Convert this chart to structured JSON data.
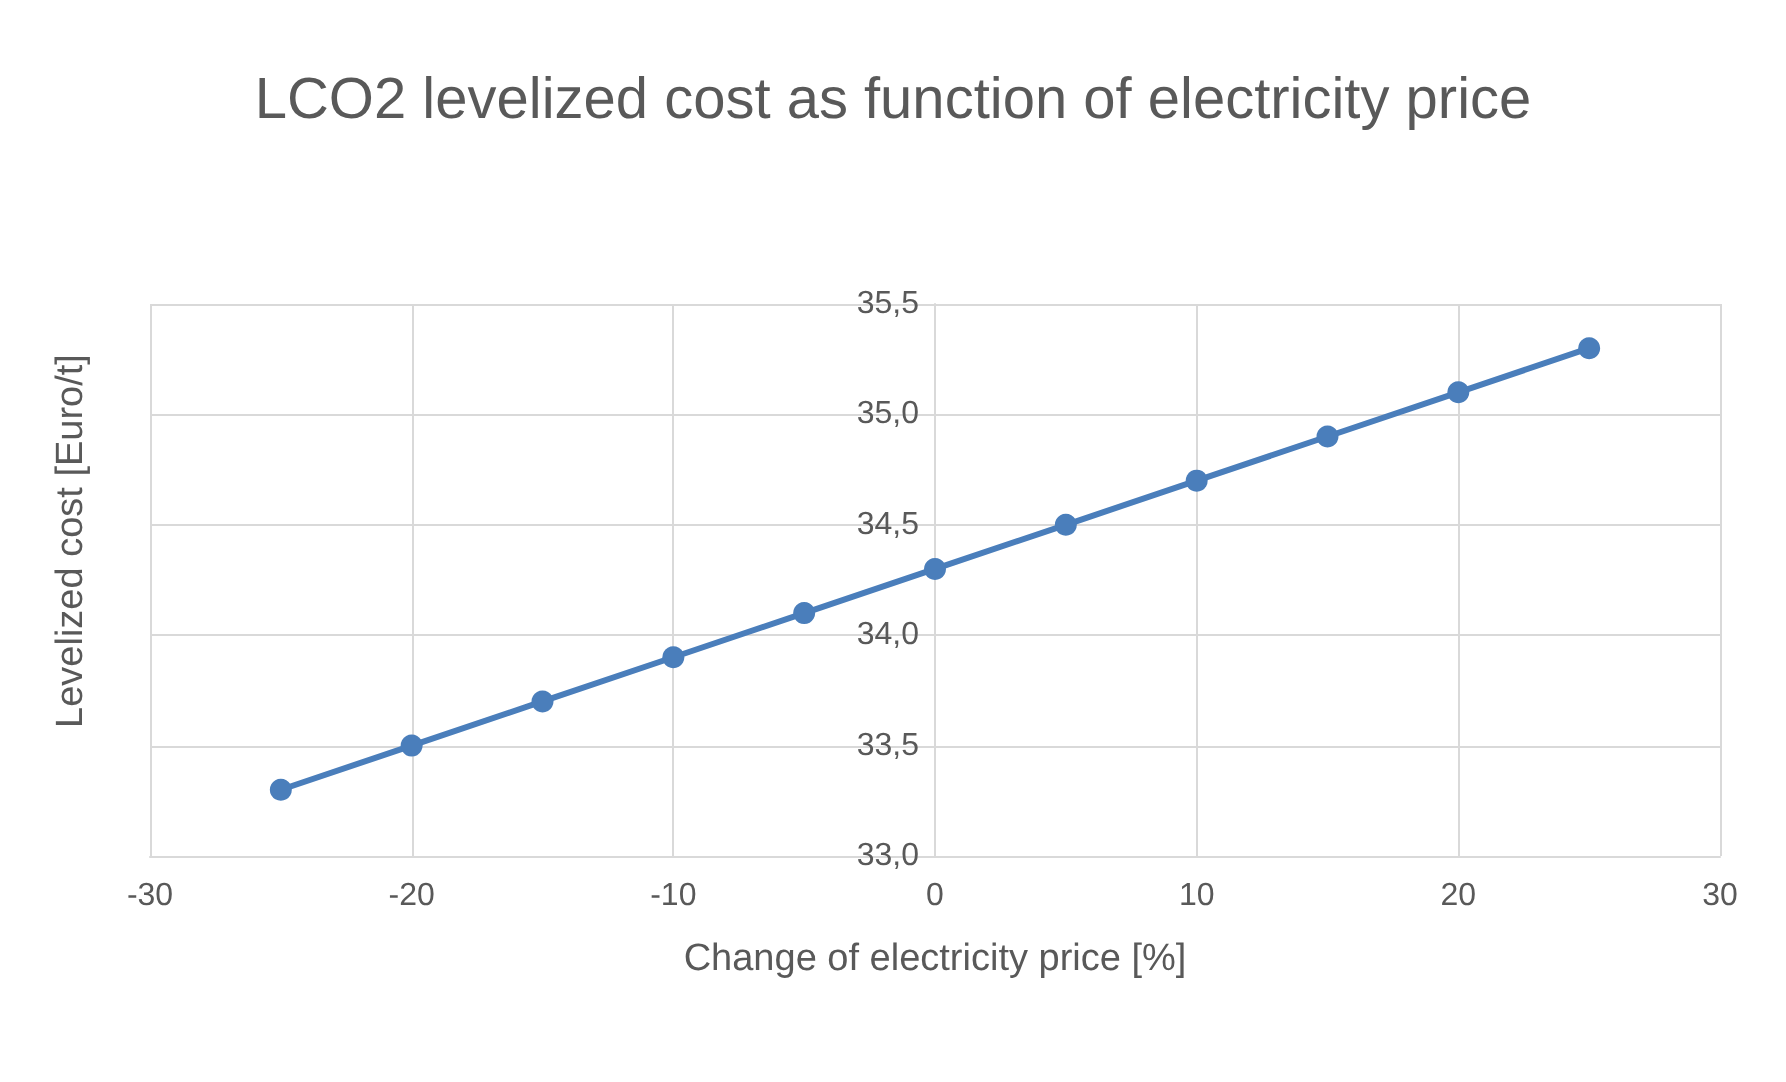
{
  "chart_data": {
    "type": "line",
    "title": "LCO2 levelized cost as function of electricity price",
    "xlabel": "Change of electricity price [%]",
    "ylabel": "Levelized cost [Euro/t]",
    "x": [
      -25,
      -20,
      -15,
      -10,
      -5,
      0,
      5,
      10,
      15,
      20,
      25
    ],
    "series": [
      {
        "color": "#4a7ebb",
        "values": [
          33.3,
          33.5,
          33.7,
          33.9,
          34.1,
          34.3,
          34.5,
          34.7,
          34.9,
          35.1,
          35.3
        ]
      }
    ],
    "xlim": [
      -30,
      30
    ],
    "xticks": [
      -30,
      -20,
      -10,
      0,
      10,
      20,
      30
    ],
    "ylim": [
      33,
      35.5
    ],
    "yticks": [
      {
        "value": 33,
        "label": "33,0"
      },
      {
        "value": 33.5,
        "label": "33,5"
      },
      {
        "value": 34,
        "label": "34,0"
      },
      {
        "value": 34.5,
        "label": "34,5"
      },
      {
        "value": 35,
        "label": "35,0"
      },
      {
        "value": 35.5,
        "label": "35,5"
      }
    ],
    "grid": true,
    "marker": "circle",
    "line_style": "solid"
  }
}
